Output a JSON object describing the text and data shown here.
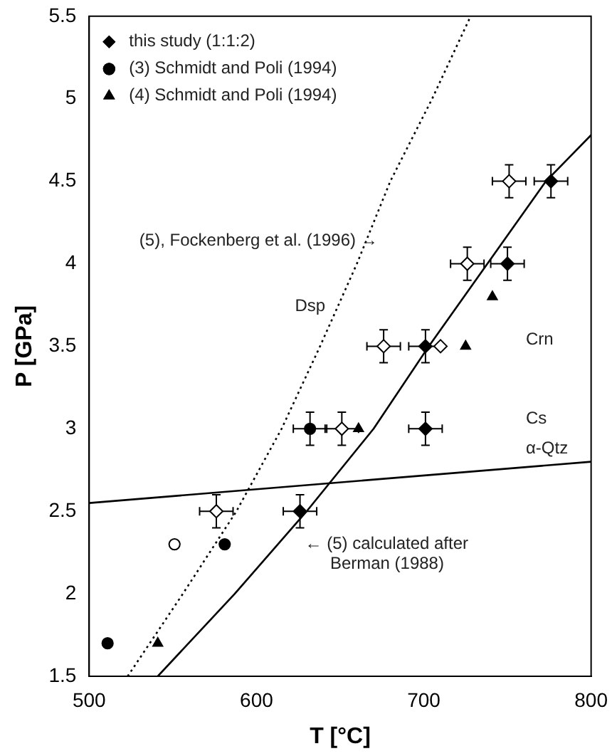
{
  "chart_data": {
    "type": "scatter",
    "xlabel": "T [°C]",
    "ylabel": "P [GPa]",
    "xlim": [
      500,
      800
    ],
    "xticks": [
      500,
      600,
      700,
      800
    ],
    "ylim": [
      1.5,
      5.5
    ],
    "yticks": [
      1.5,
      2,
      2.5,
      3,
      3.5,
      4,
      4.5,
      5,
      5.5
    ],
    "grid": false,
    "legend": "top left",
    "series": [
      {
        "name": "this study (1:1:2)",
        "type": "scatter",
        "marker": "diamond",
        "color": "#000000",
        "x": [
          626,
          701,
          701,
          750,
          776
        ],
        "values": [
          2.5,
          3.0,
          3.5,
          4.0,
          4.5
        ],
        "errors": [
          0.1,
          0.1,
          0.1,
          0.1,
          0.1
        ],
        "xerrors": [
          10,
          10,
          10,
          10,
          10
        ]
      },
      {
        "name": "(3) Schmidt and Poli (1994)",
        "type": "scatter",
        "marker": "circle",
        "color": "#000000",
        "x": [
          511,
          581,
          632
        ],
        "values": [
          1.7,
          2.3,
          3.0
        ],
        "errors": [
          null,
          null,
          0.1
        ],
        "xerrors": [
          null,
          null,
          10
        ]
      },
      {
        "name": "(4) Schmidt and Poli (1994)",
        "type": "scatter",
        "marker": "triangle",
        "color": "#000000",
        "x": [
          541,
          661,
          725,
          741
        ],
        "values": [
          1.7,
          3.0,
          3.5,
          3.8
        ]
      },
      {
        "type": "scatter",
        "marker": "diamond",
        "color": "#ffffff",
        "x": [
          576,
          651,
          676,
          710,
          726,
          751
        ],
        "values": [
          2.5,
          3.0,
          3.5,
          3.5,
          4.0,
          4.5
        ],
        "errors": [
          0.1,
          0.1,
          0.1,
          null,
          0.1,
          0.1
        ],
        "xerrors": [
          10,
          10,
          10,
          null,
          10,
          10
        ]
      },
      {
        "type": "scatter",
        "marker": "circle",
        "color": "#ffffff",
        "x": [
          551
        ],
        "values": [
          2.3
        ]
      },
      {
        "type": "line",
        "marker": "none",
        "line_style": "dotted",
        "color": "#000000",
        "x": [
          523,
          556,
          588,
          615,
          638,
          660,
          680,
          705,
          728
        ],
        "values": [
          1.5,
          2.0,
          2.5,
          3.0,
          3.5,
          4.0,
          4.5,
          5.0,
          5.5
        ]
      },
      {
        "type": "line",
        "marker": "none",
        "line_style": "solid",
        "color": "#000000",
        "x": [
          541,
          587,
          630,
          670,
          703,
          738,
          773,
          800
        ],
        "values": [
          1.5,
          2.0,
          2.5,
          3.0,
          3.5,
          4.0,
          4.5,
          4.78
        ]
      },
      {
        "type": "line",
        "marker": "none",
        "line_style": "solid",
        "color": "#000000",
        "x": [
          500,
          800
        ],
        "values": [
          2.55,
          2.8
        ]
      }
    ],
    "annotations": [
      "(5), Fockenberg et al. (1996) →",
      "Dsp",
      "Crn",
      "Cs",
      "α-Qtz",
      "← (5) calculated after",
      "Berman (1988)"
    ]
  }
}
